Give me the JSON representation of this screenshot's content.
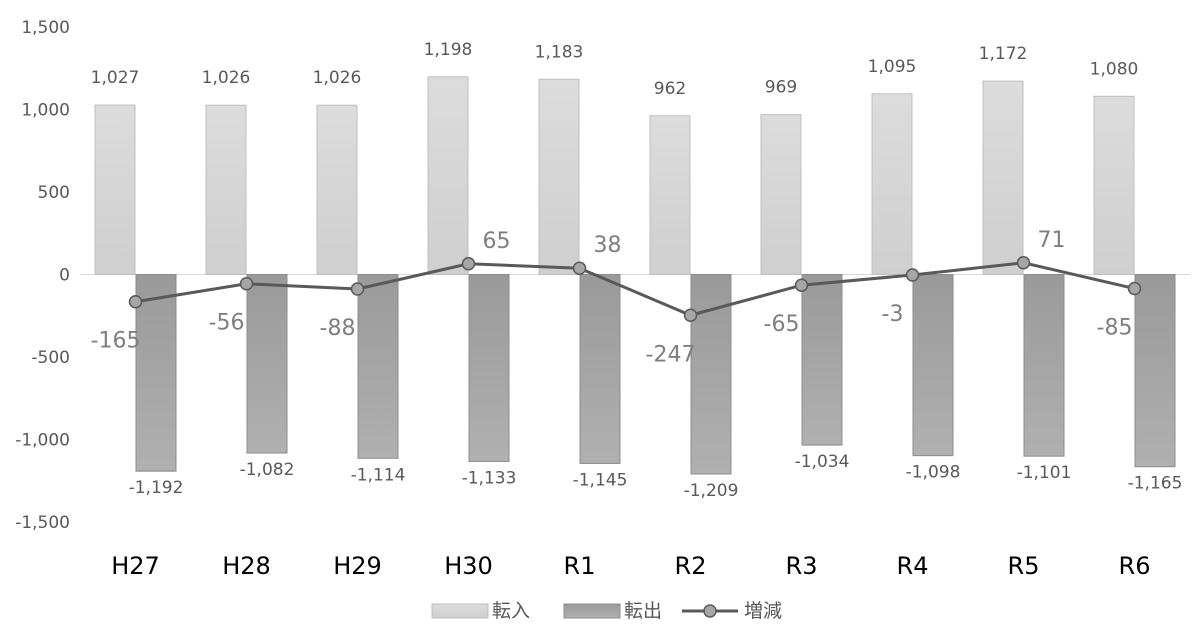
{
  "chart_data": {
    "type": "bar",
    "title": "",
    "xlabel": "",
    "ylabel": "",
    "ylim": [
      -1500,
      1500
    ],
    "ytick_values": [
      1500,
      1000,
      500,
      0,
      -500,
      -1000,
      -1500
    ],
    "ytick_labels": [
      "1,500",
      "1,000",
      "500",
      "0",
      "-500",
      "-1,000",
      "-1,500"
    ],
    "categories": [
      "H27",
      "H28",
      "H29",
      "H30",
      "R1",
      "R2",
      "R3",
      "R4",
      "R5",
      "R6"
    ],
    "series": [
      {
        "name": "転入",
        "kind": "bar",
        "color": "#d0d0d0",
        "values": [
          1027,
          1026,
          1026,
          1198,
          1183,
          962,
          969,
          1095,
          1172,
          1080
        ],
        "labels": [
          "1,027",
          "1,026",
          "1,026",
          "1,198",
          "1,183",
          "962",
          "969",
          "1,095",
          "1,172",
          "1,080"
        ]
      },
      {
        "name": "転出",
        "kind": "bar",
        "color": "#a6a6a6",
        "values": [
          -1192,
          -1082,
          -1114,
          -1133,
          -1145,
          -1209,
          -1034,
          -1098,
          -1101,
          -1165
        ],
        "labels": [
          "-1,192",
          "-1,082",
          "-1,114",
          "-1,133",
          "-1,145",
          "-1,209",
          "-1,034",
          "-1,098",
          "-1,101",
          "-1,165"
        ]
      },
      {
        "name": "増減",
        "kind": "line",
        "color": "#595959",
        "marker_color": "#a6a6a6",
        "values": [
          -165,
          -56,
          -88,
          65,
          38,
          -247,
          -65,
          -3,
          71,
          -85
        ],
        "labels": [
          "-165",
          "-56",
          "-88",
          "65",
          "38",
          "-247",
          "-65",
          "-3",
          "71",
          "-85"
        ]
      }
    ],
    "grid": false,
    "legend": "bottom-center"
  }
}
